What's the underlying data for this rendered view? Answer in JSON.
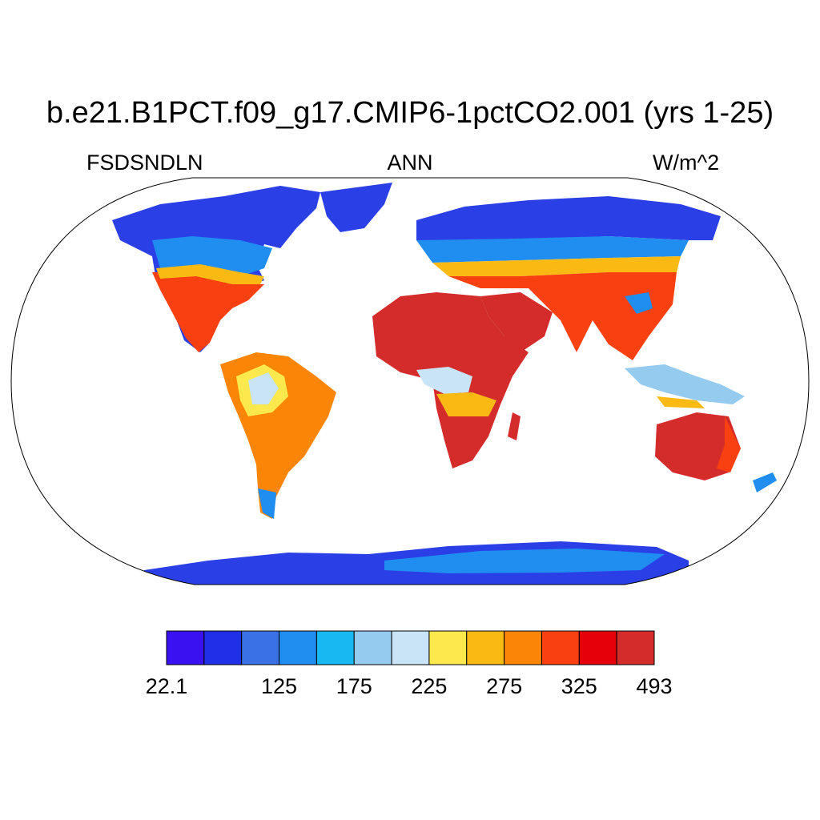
{
  "title": "b.e21.B1PCT.f09_g17.CMIP6-1pctCO2.001 (yrs 1-25)",
  "subtitle_left": "FSDSNDLN",
  "subtitle_center": "ANN",
  "subtitle_right": "W/m^2",
  "colorbar": {
    "colors": [
      "#3a12f2",
      "#2030e8",
      "#3a72e6",
      "#1f8ef0",
      "#18b8f2",
      "#95cbef",
      "#c8e4f6",
      "#fde84e",
      "#fbb914",
      "#fb8506",
      "#f94011",
      "#e6000a",
      "#d42b2b"
    ],
    "tick_labels": [
      "22.1",
      "125",
      "175",
      "225",
      "275",
      "325",
      "493"
    ]
  },
  "legend_colors": {
    "low": "#3a12f2",
    "high": "#d42b2b",
    "ocean": "#ffffff"
  }
}
